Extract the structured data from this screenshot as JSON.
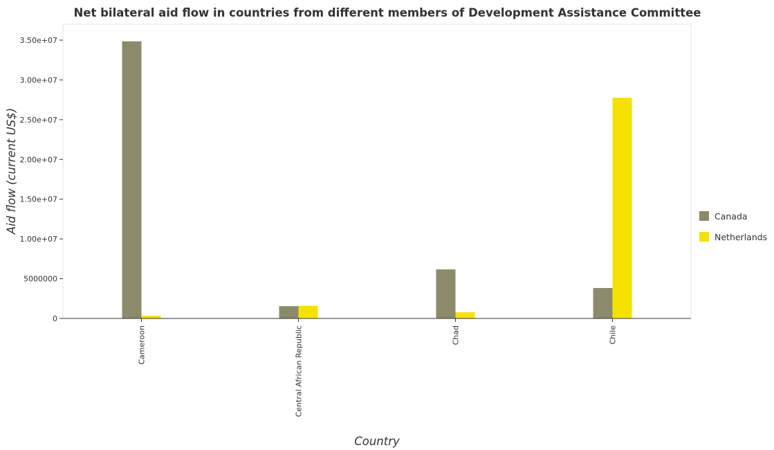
{
  "chart_data": {
    "type": "bar",
    "title": "Net bilateral aid flow in countries from different members of Development Assistance Committee",
    "xlabel": "Country",
    "ylabel": "Aid flow (current US$)",
    "categories": [
      "Cameroon",
      "Central African Republic",
      "Chad",
      "Chile"
    ],
    "ylim": [
      0,
      37000000
    ],
    "yticks": [
      0,
      5000000,
      10000000,
      15000000,
      20000000,
      25000000,
      30000000,
      35000000
    ],
    "ytick_labels": [
      "0",
      "5000000",
      "1.00e+07",
      "1.50e+07",
      "2.00e+07",
      "2.50e+07",
      "3.00e+07",
      "3.50e+07"
    ],
    "series": [
      {
        "name": "Canada",
        "color": "#8b8b6b",
        "values": [
          34850000,
          1550000,
          6170000,
          3830000
        ]
      },
      {
        "name": "Netherlands",
        "color": "#f5e100",
        "values": [
          340000,
          1590000,
          780000,
          27750000
        ]
      }
    ],
    "legend_position": "right",
    "grid": false
  }
}
